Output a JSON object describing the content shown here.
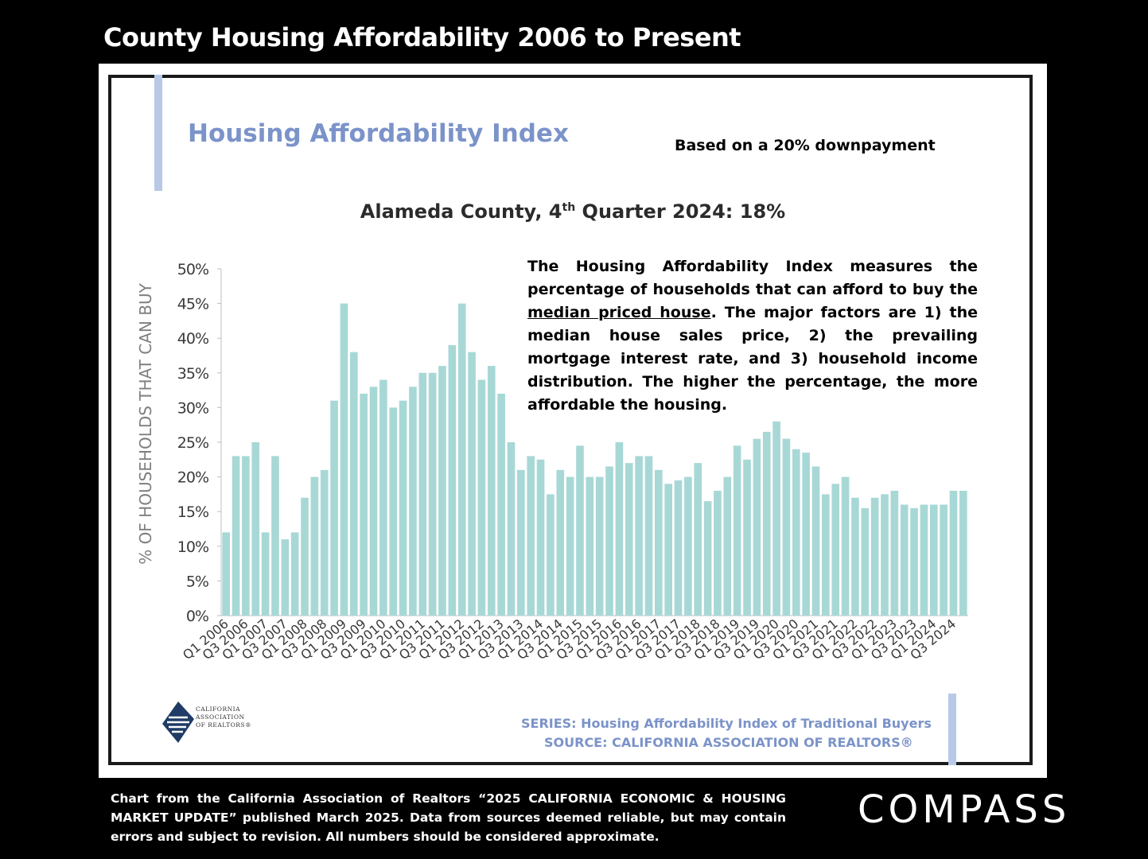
{
  "page": {
    "title": "County Housing Affordability 2006 to Present",
    "footnote": "Chart from the California Association of Realtors “2025 CALIFORNIA ECONOMIC & HOUSING MARKET UPDATE” published March 2025. Data from sources deemed reliable, but may contain errors and subject to revision. All numbers should be considered approximate.",
    "brand": "COMPASS"
  },
  "panel": {
    "heading": "Housing Affordability Index",
    "downpayment_note": "Based on a 20% downpayment",
    "subtitle_prefix": "Alameda County, 4",
    "subtitle_sup": "th",
    "subtitle_suffix": " Quarter 2024: 18%",
    "description_before": "The Housing Affordability Index measures the percentage of households that can afford to buy the ",
    "description_underlined": "median priced house",
    "description_after": ". The major factors are 1) the median house sales price, 2) the prevailing mortgage interest rate, and 3) household income distribution. The higher the percentage, the more affordable the housing.",
    "series_line": "SERIES: Housing Affordability Index of Traditional Buyers",
    "source_line": "SOURCE:  CALIFORNIA ASSOCIATION OF REALTORS®",
    "logo_text_1": "CALIFORNIA",
    "logo_text_2": "ASSOCIATION",
    "logo_text_3": "OF REALTORS®"
  },
  "chart_data": {
    "type": "bar",
    "title": "Alameda County, 4th Quarter 2024: 18%",
    "ylabel": "% OF HOUSEHOLDS THAT CAN BUY",
    "xlabel": "",
    "ylim": [
      0,
      50
    ],
    "y_ticks": [
      "0%",
      "5%",
      "10%",
      "15%",
      "20%",
      "25%",
      "30%",
      "35%",
      "40%",
      "45%",
      "50%"
    ],
    "bar_color": "#a8d8d6",
    "categories": [
      "Q1 2006",
      "Q2 2006",
      "Q3 2006",
      "Q4 2006",
      "Q1 2007",
      "Q2 2007",
      "Q3 2007",
      "Q4 2007",
      "Q1 2008",
      "Q2 2008",
      "Q3 2008",
      "Q4 2008",
      "Q1 2009",
      "Q2 2009",
      "Q3 2009",
      "Q4 2009",
      "Q1 2010",
      "Q2 2010",
      "Q3 2010",
      "Q4 2010",
      "Q1 2011",
      "Q2 2011",
      "Q3 2011",
      "Q4 2011",
      "Q1 2012",
      "Q2 2012",
      "Q3 2012",
      "Q4 2012",
      "Q1 2013",
      "Q2 2013",
      "Q3 2013",
      "Q4 2013",
      "Q1 2014",
      "Q2 2014",
      "Q3 2014",
      "Q4 2014",
      "Q1 2015",
      "Q2 2015",
      "Q3 2015",
      "Q4 2015",
      "Q1 2016",
      "Q2 2016",
      "Q3 2016",
      "Q4 2016",
      "Q1 2017",
      "Q2 2017",
      "Q3 2017",
      "Q4 2017",
      "Q1 2018",
      "Q2 2018",
      "Q3 2018",
      "Q4 2018",
      "Q1 2019",
      "Q2 2019",
      "Q3 2019",
      "Q4 2019",
      "Q1 2020",
      "Q2 2020",
      "Q3 2020",
      "Q4 2020",
      "Q1 2021",
      "Q2 2021",
      "Q3 2021",
      "Q4 2021",
      "Q1 2022",
      "Q2 2022",
      "Q3 2022",
      "Q4 2022",
      "Q1 2023",
      "Q2 2023",
      "Q3 2023",
      "Q4 2023",
      "Q1 2024",
      "Q2 2024",
      "Q3 2024",
      "Q4 2024"
    ],
    "values": [
      12,
      23,
      23,
      25,
      12,
      23,
      11,
      12,
      17,
      20,
      21,
      31,
      45,
      38,
      32,
      33,
      34,
      30,
      31,
      33,
      35,
      35,
      36,
      39,
      45,
      38,
      34,
      36,
      32,
      25,
      21,
      23,
      22.5,
      17.5,
      21,
      20,
      24.5,
      20,
      20,
      21.5,
      25,
      22,
      23,
      23,
      21,
      19,
      19.5,
      20,
      22,
      16.5,
      18,
      20,
      24.5,
      22.5,
      25.5,
      26.5,
      28,
      25.5,
      24,
      23.5,
      21.5,
      17.5,
      19,
      20,
      17,
      15.5,
      17,
      17.5,
      18,
      16,
      15.5,
      16,
      16,
      16,
      18,
      18
    ],
    "x_tick_labels_shown": "every other quarter, alternating Q1 and Q3 (Q1 2006, Q3 2006, Q1 2007 … Q3 2024)"
  }
}
